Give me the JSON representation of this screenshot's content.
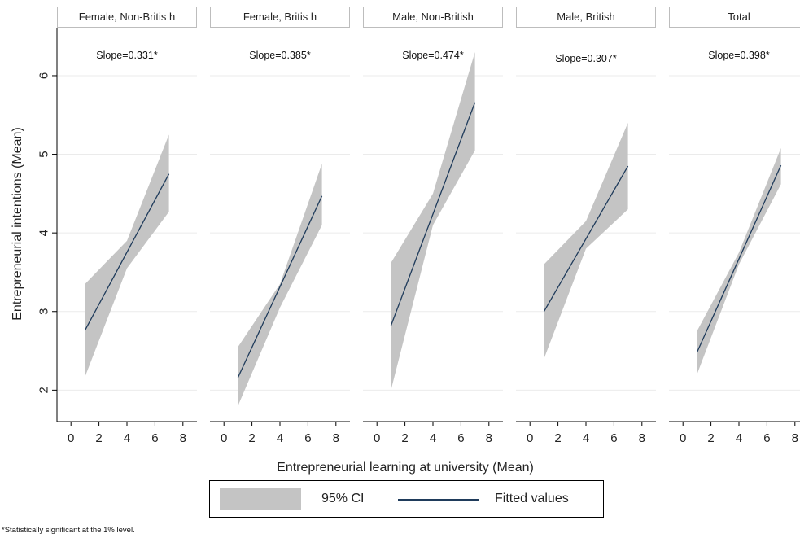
{
  "chart_data": {
    "type": "line",
    "xlabel": "Entrepreneurial learning at university (Mean)",
    "ylabel": "Entrepreneurial intentions (Mean)",
    "xlim": [
      -1,
      9
    ],
    "ylim": [
      1.6,
      6.6
    ],
    "xticks": [
      0,
      2,
      4,
      6,
      8
    ],
    "yticks": [
      2,
      3,
      4,
      5,
      6
    ],
    "grid": "horizontal",
    "ci_color": "#c4c4c4",
    "line_color": "#1f3b5b",
    "panels": [
      {
        "title": "Female, Non-Britis h",
        "slope": "Slope=0.331*",
        "fitted": [
          [
            1,
            2.76
          ],
          [
            7,
            4.75
          ]
        ],
        "ci_upper": [
          [
            1,
            3.35
          ],
          [
            4,
            3.9
          ],
          [
            7,
            5.25
          ]
        ],
        "ci_lower": [
          [
            1,
            2.17
          ],
          [
            4,
            3.55
          ],
          [
            7,
            4.27
          ]
        ]
      },
      {
        "title": "Female, Britis h",
        "slope": "Slope=0.385*",
        "fitted": [
          [
            1,
            2.16
          ],
          [
            7,
            4.47
          ]
        ],
        "ci_upper": [
          [
            1,
            2.55
          ],
          [
            4,
            3.35
          ],
          [
            7,
            4.88
          ]
        ],
        "ci_lower": [
          [
            1,
            1.8
          ],
          [
            4,
            3.05
          ],
          [
            7,
            4.1
          ]
        ]
      },
      {
        "title": "Male, Non-British",
        "slope": "Slope=0.474*",
        "fitted": [
          [
            1,
            2.82
          ],
          [
            7,
            5.66
          ]
        ],
        "ci_upper": [
          [
            1,
            3.62
          ],
          [
            4,
            4.5
          ],
          [
            7,
            6.3
          ]
        ],
        "ci_lower": [
          [
            1,
            2.0
          ],
          [
            4,
            4.1
          ],
          [
            7,
            5.05
          ]
        ]
      },
      {
        "title": "Male, British",
        "slope": "Slope=0.307*",
        "fitted": [
          [
            1,
            3.0
          ],
          [
            7,
            4.85
          ]
        ],
        "ci_upper": [
          [
            1,
            3.6
          ],
          [
            4,
            4.15
          ],
          [
            7,
            5.4
          ]
        ],
        "ci_lower": [
          [
            1,
            2.4
          ],
          [
            4,
            3.8
          ],
          [
            7,
            4.3
          ]
        ]
      },
      {
        "title": "Total",
        "slope": "Slope=0.398*",
        "fitted": [
          [
            1,
            2.48
          ],
          [
            7,
            4.86
          ]
        ],
        "ci_upper": [
          [
            1,
            2.75
          ],
          [
            4,
            3.75
          ],
          [
            7,
            5.08
          ]
        ],
        "ci_lower": [
          [
            1,
            2.2
          ],
          [
            4,
            3.6
          ],
          [
            7,
            4.62
          ]
        ]
      }
    ],
    "legend": {
      "position": "bottom",
      "ci_label": "95% CI",
      "fitted_label": "Fitted values"
    }
  },
  "footnote": "*Statistically significant at the 1% level."
}
